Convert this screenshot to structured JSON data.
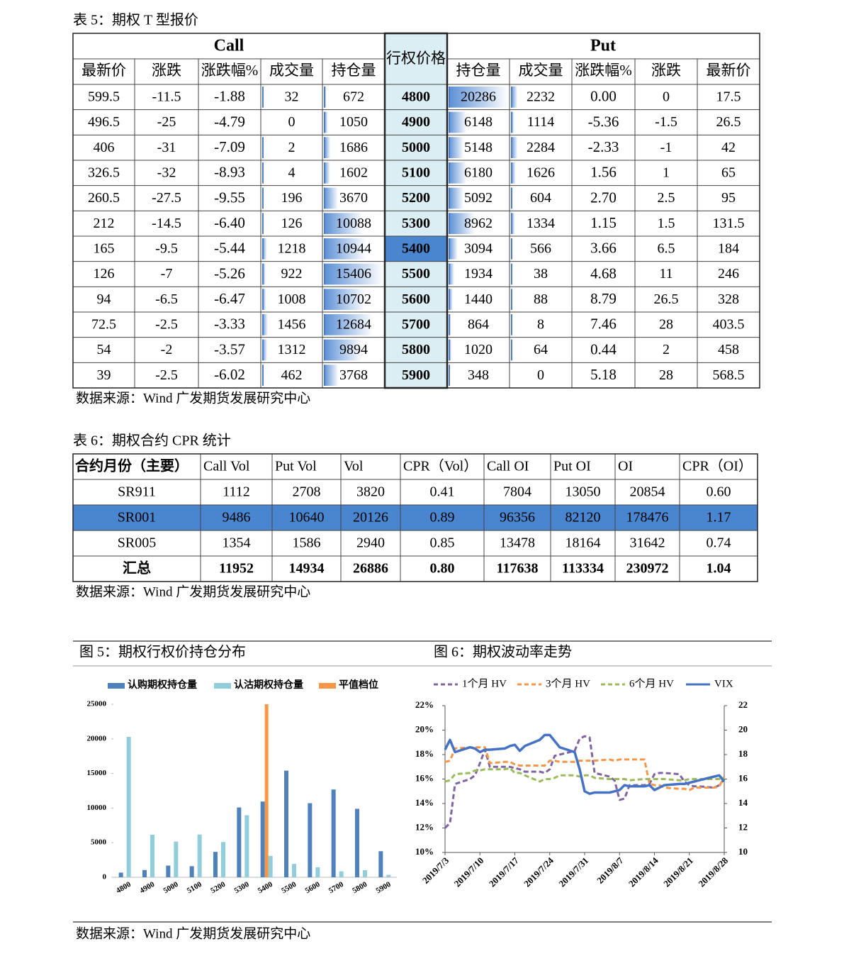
{
  "table5": {
    "caption": "表 5：期权 T 型报价",
    "call_label": "Call",
    "put_label": "Put",
    "strike_header": "行权价格",
    "call_headers": [
      "最新价",
      "涨跌",
      "涨跌幅%",
      "成交量",
      "持仓量"
    ],
    "put_headers": [
      "持仓量",
      "成交量",
      "涨跌幅%",
      "涨跌",
      "最新价"
    ],
    "atm_strike": 5400,
    "rows": [
      [
        599.5,
        -11.5,
        -1.88,
        32,
        672,
        4800,
        20286,
        2232,
        "0.00",
        0,
        17.5
      ],
      [
        496.5,
        -25,
        -4.79,
        0,
        1050,
        4900,
        6148,
        1114,
        -5.36,
        -1.5,
        26.5
      ],
      [
        406,
        -31,
        -7.09,
        2,
        1686,
        5000,
        5148,
        2284,
        -2.33,
        -1,
        42
      ],
      [
        326.5,
        -32,
        -8.93,
        4,
        1602,
        5100,
        6180,
        1626,
        1.56,
        1,
        65
      ],
      [
        260.5,
        -27.5,
        -9.55,
        196,
        3670,
        5200,
        5092,
        604,
        "2.70",
        2.5,
        95
      ],
      [
        212,
        -14.5,
        "-6.40",
        126,
        10088,
        5300,
        8962,
        1334,
        1.15,
        1.5,
        131.5
      ],
      [
        165,
        -9.5,
        -5.44,
        1218,
        10944,
        5400,
        3094,
        566,
        3.66,
        6.5,
        184
      ],
      [
        126,
        -7,
        -5.26,
        922,
        15406,
        5500,
        1934,
        38,
        4.68,
        11,
        246
      ],
      [
        94,
        -6.5,
        -6.47,
        1008,
        10702,
        5600,
        1440,
        88,
        8.79,
        26.5,
        328
      ],
      [
        72.5,
        -2.5,
        -3.33,
        1456,
        12684,
        5700,
        864,
        8,
        7.46,
        28,
        403.5
      ],
      [
        54,
        -2,
        -3.57,
        1312,
        9894,
        5800,
        1020,
        64,
        0.44,
        2,
        458
      ],
      [
        39,
        -2.5,
        -6.02,
        462,
        3768,
        5900,
        348,
        0,
        5.18,
        28,
        568.5
      ]
    ],
    "source": "数据来源：Wind 广发期货发展研究中心"
  },
  "table6": {
    "caption": "表 6：期权合约 CPR 统计",
    "headers": [
      "合约月份（主要）",
      "Call Vol",
      "Put Vol",
      "Vol",
      "CPR（Vol）",
      "Call OI",
      "Put OI",
      "OI",
      "CPR（OI）"
    ],
    "highlight": "SR001",
    "rows": [
      [
        "SR911",
        1112,
        2708,
        3820,
        0.41,
        7804,
        13050,
        20854,
        "0.60"
      ],
      [
        "SR001",
        9486,
        10640,
        20126,
        0.89,
        96356,
        82120,
        178476,
        1.17
      ],
      [
        "SR005",
        1354,
        1586,
        2940,
        0.85,
        13478,
        18164,
        31642,
        0.74
      ],
      [
        "汇总",
        11952,
        14934,
        26886,
        "0.80",
        117638,
        113334,
        230972,
        1.04
      ]
    ],
    "source": "数据来源：Wind 广发期货发展研究中心"
  },
  "chart_data": [
    {
      "type": "bar",
      "title": "图 5：期权行权价持仓分布",
      "categories": [
        "4800",
        "4900",
        "5000",
        "5100",
        "5200",
        "5300",
        "5400",
        "5500",
        "5600",
        "5700",
        "5800",
        "5900"
      ],
      "series": [
        {
          "name": "认购期权持仓量",
          "color": "#4f81bd",
          "values": [
            672,
            1050,
            1686,
            1602,
            3670,
            10088,
            10944,
            15406,
            10702,
            12684,
            9894,
            3768
          ]
        },
        {
          "name": "认沽期权持仓量",
          "color": "#92cddc",
          "values": [
            20286,
            6148,
            5148,
            6180,
            5092,
            8962,
            3094,
            1934,
            1440,
            864,
            1020,
            348
          ]
        },
        {
          "name": "平值档位",
          "color": "#f79646",
          "values": [
            null,
            null,
            null,
            null,
            null,
            null,
            25000,
            null,
            null,
            null,
            null,
            null
          ]
        }
      ],
      "ylim": [
        0,
        25000
      ],
      "yticks": [
        0,
        5000,
        10000,
        15000,
        20000,
        25000
      ]
    },
    {
      "type": "line",
      "title": "图 6：期权波动率走势",
      "x": [
        "2019/7/3",
        "2019/7/4",
        "2019/7/5",
        "2019/7/8",
        "2019/7/9",
        "2019/7/10",
        "2019/7/11",
        "2019/7/12",
        "2019/7/15",
        "2019/7/16",
        "2019/7/17",
        "2019/7/18",
        "2019/7/19",
        "2019/7/22",
        "2019/7/23",
        "2019/7/24",
        "2019/7/25",
        "2019/7/26",
        "2019/7/29",
        "2019/7/30",
        "2019/7/31",
        "2019/8/1",
        "2019/8/2",
        "2019/8/5",
        "2019/8/6",
        "2019/8/7",
        "2019/8/8",
        "2019/8/9",
        "2019/8/12",
        "2019/8/13",
        "2019/8/14",
        "2019/8/15",
        "2019/8/16",
        "2019/8/19",
        "2019/8/20",
        "2019/8/21",
        "2019/8/22",
        "2019/8/23",
        "2019/8/26",
        "2019/8/27",
        "2019/8/28"
      ],
      "xlim": [
        "2019/7/3",
        "2019/8/28"
      ],
      "xticks": [
        "2019/7/3",
        "2019/7/10",
        "2019/7/17",
        "2019/7/24",
        "2019/7/31",
        "2019/8/7",
        "2019/8/14",
        "2019/8/21",
        "2019/8/28"
      ],
      "ylim": [
        10,
        22
      ],
      "yticks": [
        {
          "value": 10,
          "label": "10%"
        },
        {
          "value": 12,
          "label": "12%"
        },
        {
          "value": 14,
          "label": "14%"
        },
        {
          "value": 16,
          "label": "16%"
        },
        {
          "value": 18,
          "label": "18%"
        },
        {
          "value": 20,
          "label": "20%"
        },
        {
          "value": 22,
          "label": "22%"
        }
      ],
      "y2lim": [
        10,
        22
      ],
      "y2ticks": [
        10,
        12,
        14,
        16,
        18,
        20,
        22
      ],
      "series": [
        {
          "name": "1个月 HV",
          "color": "#8064a2",
          "style": "dashed",
          "values": [
            12.0,
            12.4,
            15.6,
            16.0,
            16.3,
            17.3,
            18.4,
            17.0,
            17.0,
            17.0,
            16.9,
            16.8,
            16.6,
            16.6,
            16.5,
            16.8,
            17.9,
            18.0,
            18.3,
            19.3,
            19.5,
            19.4,
            16.5,
            16.2,
            15.9,
            14.3,
            14.4,
            15.5,
            15.5,
            15.6,
            16.4,
            16.5,
            16.5,
            16.4,
            15.8,
            15.5,
            15.4,
            15.4,
            15.3,
            15.5,
            16.0
          ]
        },
        {
          "name": "3个月 HV",
          "color": "#f79646",
          "style": "dashed",
          "values": [
            17.4,
            17.5,
            18.5,
            18.6,
            18.6,
            18.6,
            18.6,
            17.3,
            17.4,
            17.4,
            17.2,
            17.1,
            17.1,
            17.1,
            17.1,
            17.5,
            17.5,
            17.4,
            17.4,
            17.5,
            17.5,
            17.5,
            17.5,
            17.6,
            17.5,
            17.6,
            17.6,
            17.6,
            17.6,
            15.6,
            15.5,
            15.5,
            15.3,
            15.2,
            15.2,
            15.1,
            15.3,
            15.3,
            15.3,
            15.4,
            16.2
          ]
        },
        {
          "name": "6个月 HV",
          "color": "#9bbb59",
          "style": "dashed",
          "values": [
            15.8,
            15.9,
            16.4,
            16.5,
            16.7,
            16.7,
            16.8,
            16.8,
            16.8,
            16.9,
            16.5,
            16.5,
            16.3,
            15.8,
            16.0,
            16.0,
            16.1,
            16.3,
            16.3,
            16.2,
            16.3,
            16.3,
            16.1,
            16.0,
            16.0,
            16.0,
            16.0,
            15.9,
            16.0,
            16.0,
            16.0,
            16.0,
            16.0,
            15.9,
            15.9,
            16.0,
            16.0,
            16.0,
            16.0,
            16.0,
            16.1
          ]
        },
        {
          "name": "VIX",
          "color": "#4472c4",
          "style": "solid",
          "axis": "y2",
          "values": [
            18.4,
            19.2,
            18.2,
            18.6,
            18.5,
            18.2,
            18.4,
            18.4,
            18.5,
            18.7,
            18.8,
            18.3,
            18.7,
            19.2,
            19.6,
            19.6,
            19.1,
            18.6,
            18.2,
            16.8,
            15.0,
            14.8,
            14.9,
            14.9,
            15.0,
            15.1,
            15.5,
            15.4,
            15.4,
            15.5,
            15.1,
            15.3,
            15.5,
            15.6,
            15.6,
            15.7,
            15.8,
            15.9,
            16.2,
            16.3,
            15.8
          ]
        }
      ]
    }
  ],
  "figures_source": "数据来源：Wind 广发期货发展研究中心"
}
